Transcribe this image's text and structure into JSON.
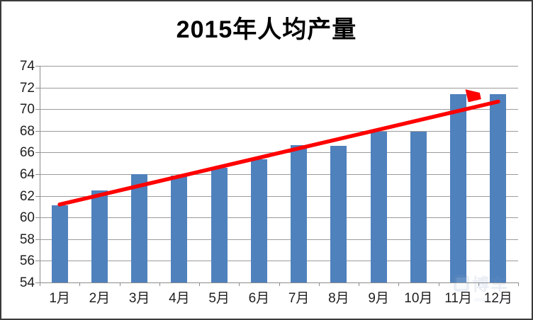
{
  "chart_data": {
    "type": "bar",
    "title": "2015年人均产量",
    "categories": [
      "1月",
      "2月",
      "3月",
      "4月",
      "5月",
      "6月",
      "7月",
      "8月",
      "9月",
      "10月",
      "11月",
      "12月"
    ],
    "values": [
      61.1,
      62.5,
      64.0,
      63.9,
      64.6,
      65.4,
      66.7,
      66.6,
      67.9,
      67.9,
      71.4,
      71.4
    ],
    "xlabel": "",
    "ylabel": "",
    "ylim": [
      54,
      74
    ],
    "ytick_step": 2,
    "grid": true,
    "legend_position": "none",
    "bar_color": "#4F81BD",
    "annotations": [
      {
        "type": "trend-arrow",
        "color": "#FF0000",
        "from": {
          "month_index": 1,
          "value": 61.2
        },
        "to": {
          "month_index": 12,
          "value": 70.7
        }
      }
    ]
  },
  "watermark": {
    "brand": "博车",
    "url": "www.***.com"
  },
  "colors": {
    "background": "#FFFFFF",
    "border": "#3A3A3A",
    "gridline": "#9B9B9B",
    "axis": "#8C8C8C",
    "tick_label": "#1F1F1F",
    "title": "#000000",
    "bar": "#4F81BD",
    "arrow": "#FF0000"
  }
}
